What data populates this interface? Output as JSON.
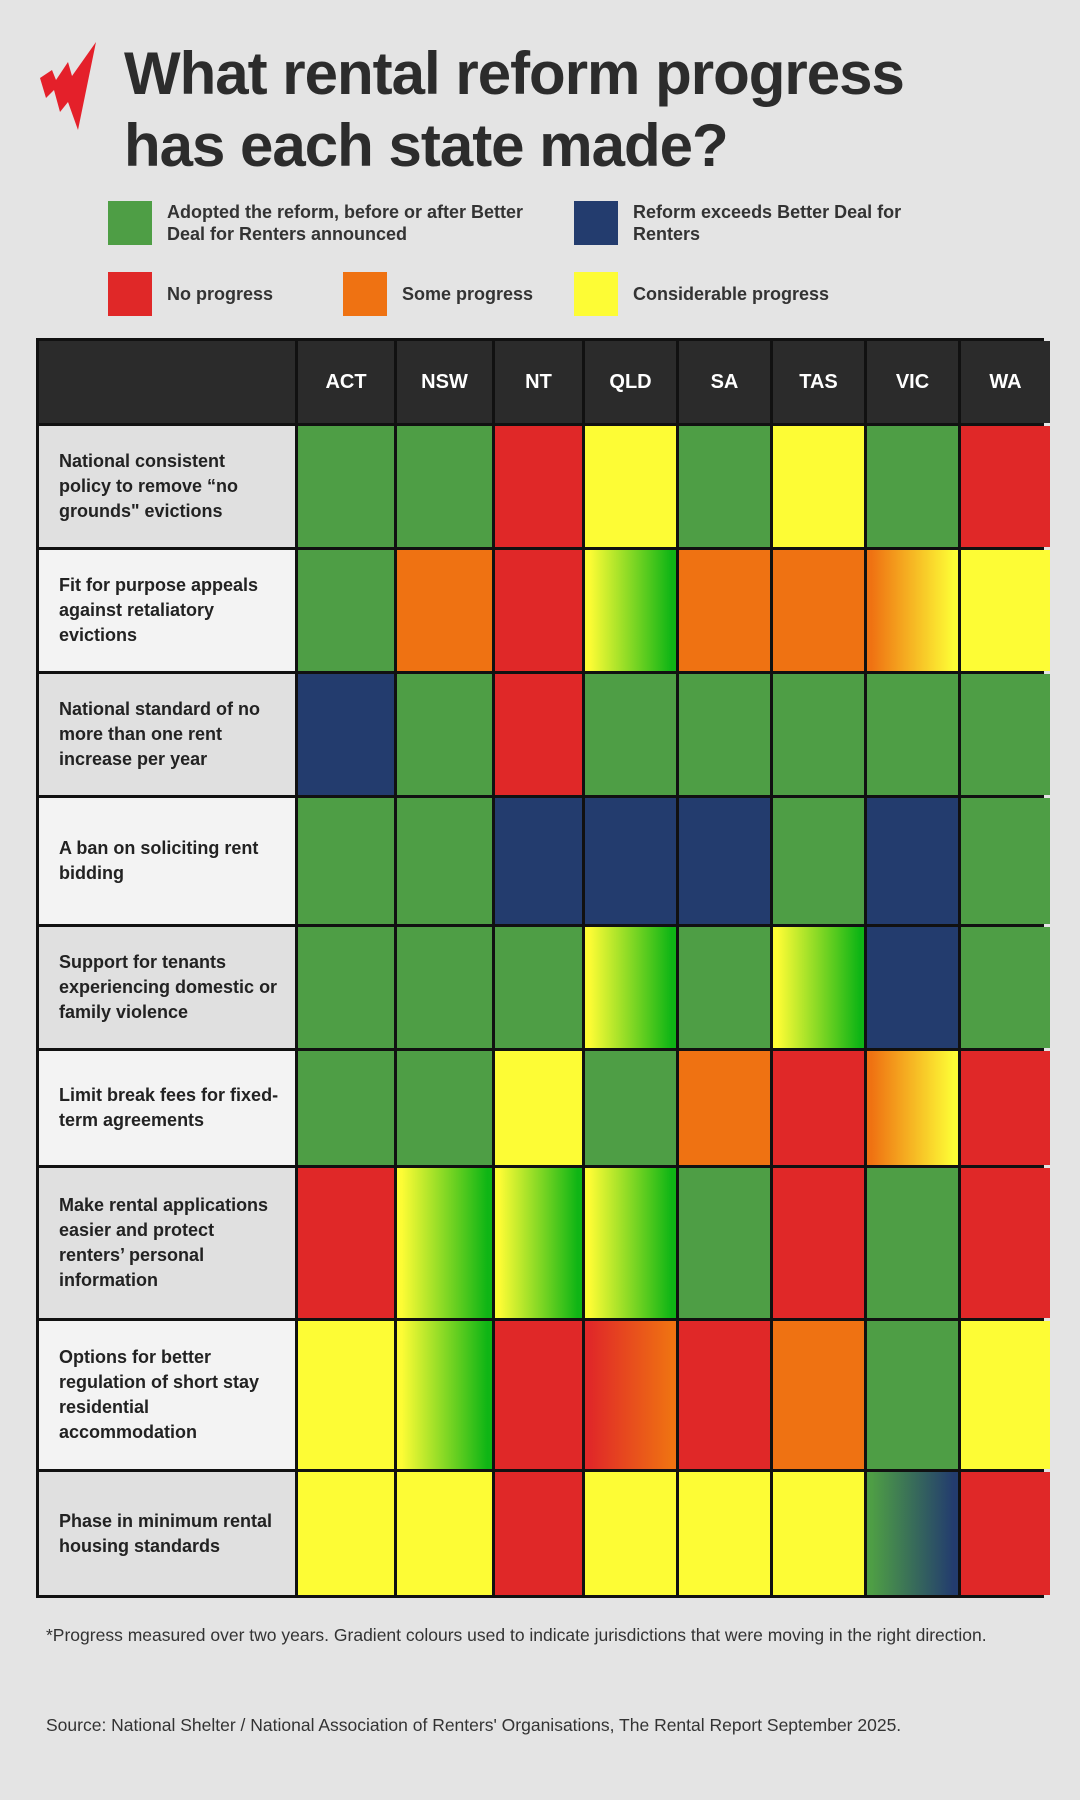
{
  "logo": "SBS",
  "title_line1": "What rental reform progress",
  "title_line2": "has each state made?",
  "legend": {
    "adopted": {
      "label": "Adopted the reform, before or after Better Deal for Renters announced",
      "color": "#4e9e45"
    },
    "exceeds": {
      "label": "Reform exceeds Better Deal for Renters",
      "color": "#233c6e"
    },
    "none": {
      "label": "No progress",
      "color": "#e02828"
    },
    "some": {
      "label": "Some progress",
      "color": "#ef7212"
    },
    "considerable": {
      "label": "Considerable progress",
      "color": "#fdfc35"
    }
  },
  "chart_data": {
    "type": "table",
    "title": "What rental reform progress has each state made?",
    "columns": [
      "ACT",
      "NSW",
      "NT",
      "QLD",
      "SA",
      "TAS",
      "VIC",
      "WA"
    ],
    "status_codes": {
      "G": "adopted",
      "B": "exceeds",
      "R": "none",
      "O": "some",
      "Y": "considerable",
      "Y>G": "gradient considerable to adopted",
      "O>Y": "gradient some to considerable",
      "R>O": "gradient none to some",
      "G>B": "gradient adopted to exceeds"
    },
    "rows": [
      {
        "label": "National consistent policy to remove “no grounds\" evictions",
        "values": [
          "G",
          "G",
          "R",
          "Y",
          "G",
          "Y",
          "G",
          "R"
        ]
      },
      {
        "label": "Fit for purpose appeals against retaliatory evictions",
        "values": [
          "G",
          "O",
          "R",
          "Y>G",
          "O",
          "O",
          "O>Y",
          "Y"
        ]
      },
      {
        "label": "National standard of no more than one rent increase per year",
        "values": [
          "B",
          "G",
          "R",
          "G",
          "G",
          "G",
          "G",
          "G"
        ]
      },
      {
        "label": "A ban on soliciting rent bidding",
        "values": [
          "G",
          "G",
          "B",
          "B",
          "B",
          "G",
          "B",
          "G"
        ]
      },
      {
        "label": "Support for tenants experiencing domestic or family violence",
        "values": [
          "G",
          "G",
          "G",
          "Y>G",
          "G",
          "Y>G",
          "B",
          "G"
        ]
      },
      {
        "label": "Limit break fees for fixed-term agreements",
        "values": [
          "G",
          "G",
          "Y",
          "G",
          "O",
          "R",
          "O>Y",
          "R"
        ]
      },
      {
        "label": "Make rental applications easier and protect renters’ personal information",
        "values": [
          "R",
          "Y>G",
          "Y>G",
          "Y>G",
          "G",
          "R",
          "G",
          "R"
        ]
      },
      {
        "label": "Options for better regulation of short stay residential accommodation",
        "values": [
          "Y",
          "Y>G",
          "R",
          "R>O",
          "R",
          "O",
          "G",
          "Y"
        ]
      },
      {
        "label": "Phase in minimum rental housing standards",
        "values": [
          "Y",
          "Y",
          "R",
          "Y",
          "Y",
          "Y",
          "G>B",
          "R"
        ]
      }
    ]
  },
  "footnote": "*Progress measured over two years. Gradient colours used to indicate jurisdictions that were moving in the right direction.",
  "source": "Source: National Shelter / National Association of Renters' Organisations, The Rental Report September 2025."
}
